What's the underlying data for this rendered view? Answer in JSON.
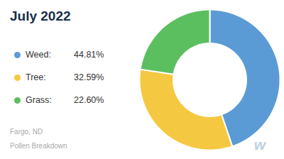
{
  "chart_data": {
    "type": "pie",
    "title": "July 2022",
    "subtitle": [
      "Fargo, ND",
      "Pollen Breakdown"
    ],
    "annotations": [
      "w"
    ],
    "categories": [
      "Weed:",
      "Tree:",
      "Grass:"
    ],
    "values": [
      44.81,
      32.59,
      22.6
    ],
    "value_labels": [
      "44.81%",
      "32.59%",
      "22.60%"
    ],
    "colors": [
      "#5b9bd5",
      "#f5c842",
      "#5cbf5f"
    ],
    "legend": "left"
  }
}
